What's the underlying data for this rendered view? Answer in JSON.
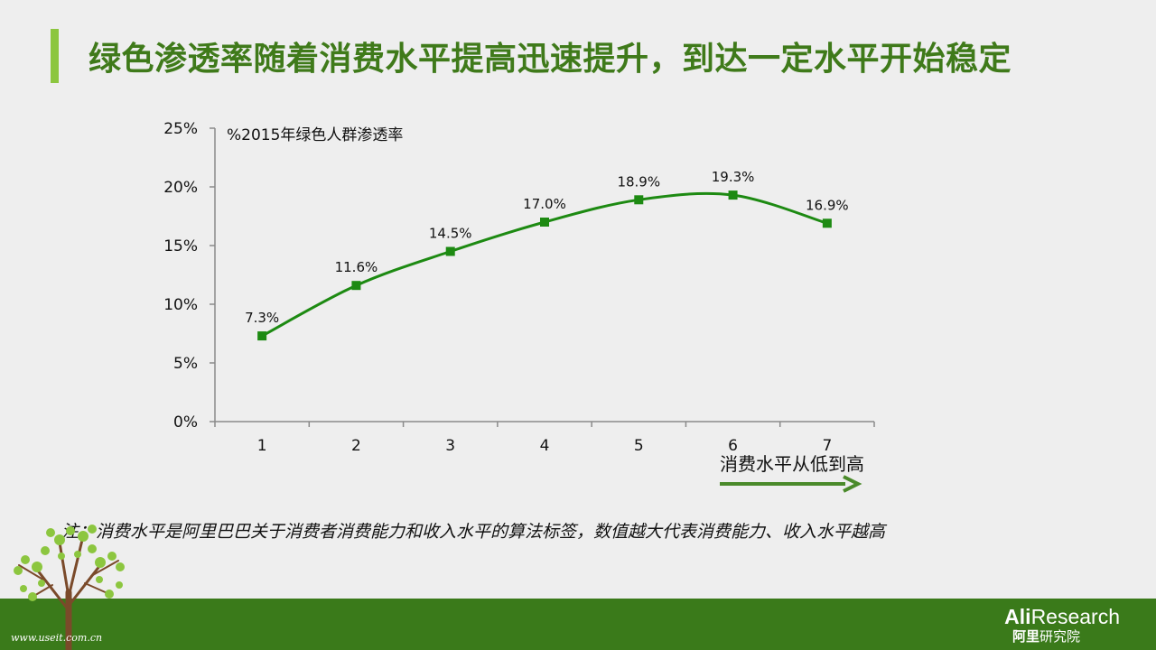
{
  "slide": {
    "title": "绿色渗透率随着消费水平提高迅速提升，到达一定水平开始稳定",
    "note": "注：消费水平是阿里巴巴关于消费者消费能力和收入水平的算法标签，数值越大代表消费能力、收入水平越高",
    "watermark": "www.useit.com.cn",
    "logo_en_bold": "Ali",
    "logo_en_rest": "Research",
    "logo_cn_bold": "阿里",
    "logo_cn_rest": "研究院"
  },
  "colors": {
    "title": "#3f7a1a",
    "accent_bar": "#8cc63f",
    "series": "#1d8a12",
    "arrow": "#4a8a2a",
    "footer": "#3a7a1a"
  },
  "chart_data": {
    "type": "line",
    "x": [
      1,
      2,
      3,
      4,
      5,
      6,
      7
    ],
    "series": [
      {
        "name": "%2015年绿色人群渗透率",
        "values": [
          7.3,
          11.6,
          14.5,
          17.0,
          18.9,
          19.3,
          16.9
        ]
      }
    ],
    "data_labels": [
      "7.3%",
      "11.6%",
      "14.5%",
      "17.0%",
      "18.9%",
      "19.3%",
      "16.9%"
    ],
    "y_ticks": [
      0,
      5,
      10,
      15,
      20,
      25
    ],
    "y_tick_labels": [
      "0%",
      "5%",
      "10%",
      "15%",
      "20%",
      "25%"
    ],
    "ylim": [
      0,
      25
    ],
    "xlabel": "消费水平从低到高",
    "ylabel": "",
    "legend_position": "top-left",
    "smooth": true,
    "grid": false
  }
}
